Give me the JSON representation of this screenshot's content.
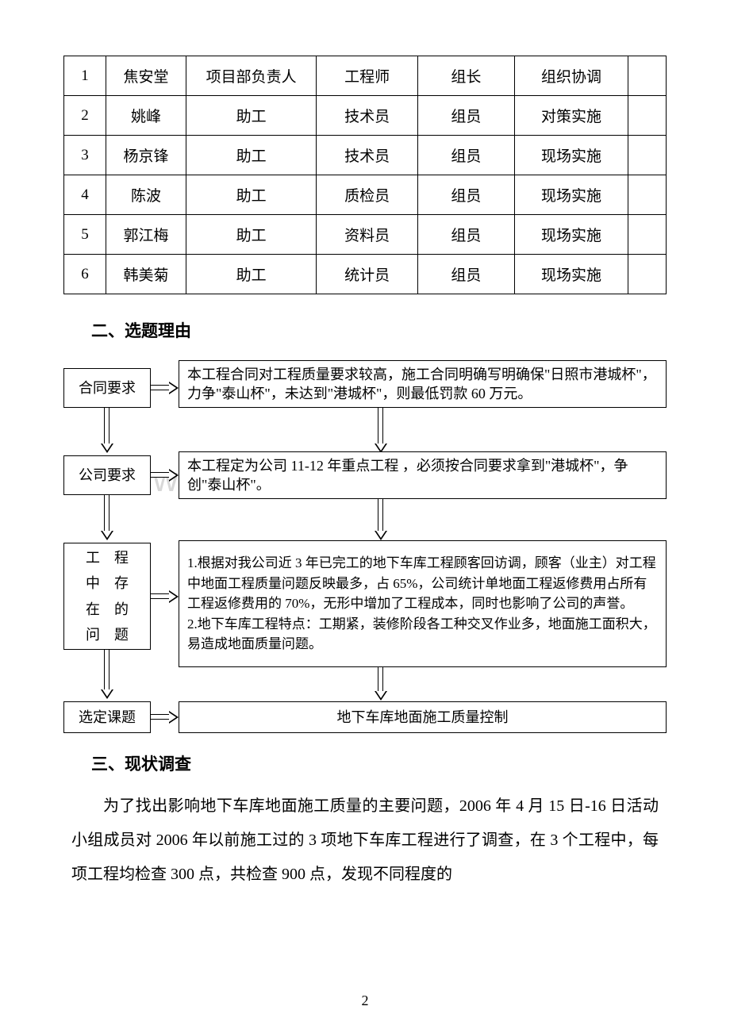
{
  "table": {
    "rows": [
      {
        "idx": "1",
        "name": "焦安堂",
        "pos": "项目部负责人",
        "role": "工程师",
        "grole": "组长",
        "div": "组织协调"
      },
      {
        "idx": "2",
        "name": "姚峰",
        "pos": "助工",
        "role": "技术员",
        "grole": "组员",
        "div": "对策实施"
      },
      {
        "idx": "3",
        "name": "杨京锋",
        "pos": "助工",
        "role": "技术员",
        "grole": "组员",
        "div": "现场实施"
      },
      {
        "idx": "4",
        "name": "陈波",
        "pos": "助工",
        "role": "质检员",
        "grole": "组员",
        "div": "现场实施"
      },
      {
        "idx": "5",
        "name": "郭江梅",
        "pos": "助工",
        "role": "资料员",
        "grole": "组员",
        "div": "现场实施"
      },
      {
        "idx": "6",
        "name": "韩美菊",
        "pos": "助工",
        "role": "统计员",
        "grole": "组员",
        "div": "现场实施"
      }
    ]
  },
  "headings": {
    "h2": "二、选题理由",
    "h3": "三、现状调查"
  },
  "flow": {
    "left1": "合同要求",
    "right1": "本工程合同对工程质量要求较高，施工合同明确写明确保\"日照市港城杯\"，力争\"泰山杯\"，未达到\"港城杯\"，则最低罚款 60 万元。",
    "left2": "公司要求",
    "right2": "本工程定为公司 11-12 年重点工程 ，必须按合同要求拿到\"港城杯\"，争创\"泰山杯\"。",
    "left3_a": "工　程",
    "left3_b": "中　存",
    "left3_c": "在　的",
    "left3_d": "问　题",
    "right3": "1.根据对我公司近 3 年已完工的地下车库工程顾客回访调，顾客（业主）对工程中地面工程质量问题反映最多，占 65%，公司统计单地面工程返修费用占所有工程返修费用的 70%，无形中增加了工程成本，同时也影响了公司的声誉。\n2.地下车库工程特点：工期紧，装修阶段各工种交叉作业多，地面施工面积大，易造成地面质量问题。",
    "left4": "选定课题",
    "right4": "地下车库地面施工质量控制"
  },
  "body": {
    "p1": "为了找出影响地下车库地面施工质量的主要问题，2006 年 4 月 15 日-16 日活动小组成员对 2006 年以前施工过的 3 项地下车库工程进行了调查，在 3 个工程中，每项工程均检查 300 点，共检查 900 点，发现不同程度的"
  },
  "page": "2",
  "watermark": "www.zixin.com.cn",
  "style": {
    "colors": {
      "text": "#000000",
      "bg": "#ffffff",
      "border": "#000000",
      "watermark": "#d8d8d8"
    },
    "table_font_size": 19,
    "heading_font_size": 21,
    "body_font_size": 20,
    "flow_font_size": 18
  }
}
